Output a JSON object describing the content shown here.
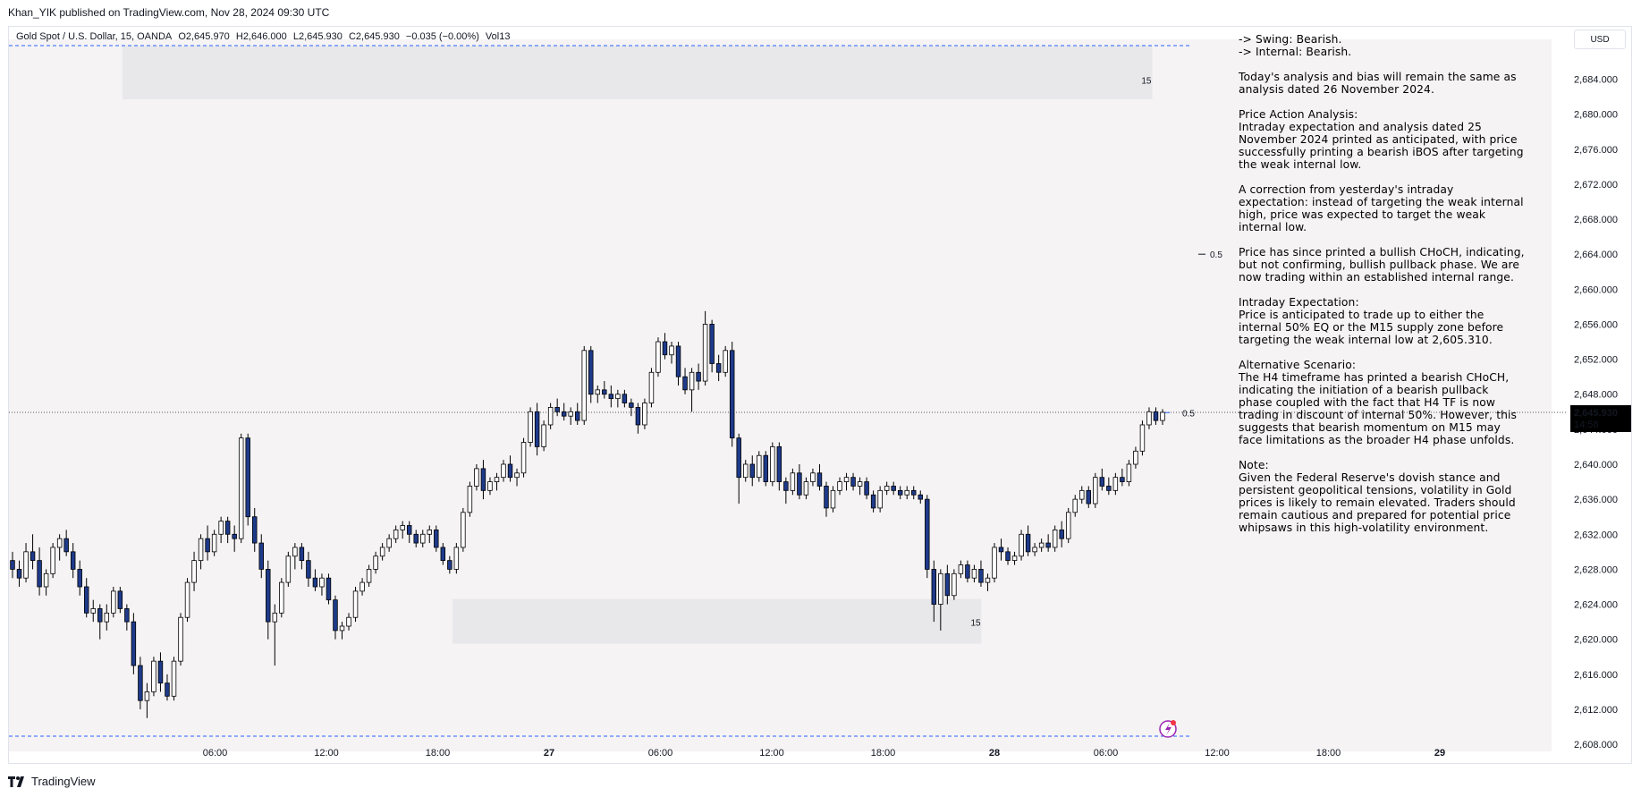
{
  "header": {
    "publisher": "Khan_YIK published on TradingView.com, Nov 28, 2024 09:30 UTC"
  },
  "legend": {
    "symbol": "Gold Spot / U.S. Dollar, 15, OANDA",
    "open": "O2,645.970",
    "high": "H2,646.000",
    "low": "L2,645.930",
    "close": "C2,645.930",
    "change": "−0.035 (−0.00%)",
    "volume": "Vol13"
  },
  "price_scale": {
    "currency": "USD",
    "last_price": "2,645.930",
    "countdown": "14:58"
  },
  "notes": [
    "-> Swing:  Bearish.\n-> Internal:  Bearish.",
    "Today's analysis and bias will remain the same as analysis dated 26 November 2024.",
    "Price Action Analysis:\nIntraday expectation and analysis dated 25 November 2024 printed as anticipated, with price successfully printing a bearish iBOS after targeting the weak internal low.",
    "A correction from yesterday's intraday expectation: instead of targeting the weak internal high, price was expected to target the weak internal low.",
    "Price has since printed a bullish CHoCH, indicating, but not confirming, bullish pullback phase. We are now trading within an established internal range.",
    "Intraday Expectation:\nPrice is anticipated to trade up to either the internal 50% EQ or the M15 supply zone before targeting the weak internal low at 2,605.310.",
    "Alternative Scenario:\nThe H4 timeframe has printed a bearish CHoCH, indicating the initiation of a bearish pullback phase coupled with the fact that H4 TF is now trading in discount of internal 50%. However, this suggests that bearish momentum on M15 may face limitations as the broader H4 phase unfolds.",
    "Note:\nGiven the Federal Reserve's dovish stance and persistent geopolitical tensions, volatility in Gold prices is likely to remain elevated. Traders should remain cautious and prepared for potential price whipsaws in this high-volatility environment."
  ],
  "footer": {
    "brand": "TradingView"
  },
  "colors": {
    "bull": "#ffffff",
    "bear": "#1e3a8a",
    "wick": "#000000",
    "zone": "#e8e8ea",
    "guide": "#2962ff",
    "bg": "#f5f3f4"
  },
  "chart_data": {
    "type": "candlestick",
    "symbol": "Gold Spot / U.S. Dollar",
    "timeframe": "15",
    "ylim": [
      2606,
      2688
    ],
    "yticks": [
      "2,608.000",
      "2,612.000",
      "2,616.000",
      "2,620.000",
      "2,624.000",
      "2,628.000",
      "2,632.000",
      "2,636.000",
      "2,640.000",
      "2,644.000",
      "2,648.000",
      "2,652.000",
      "2,656.000",
      "2,660.000",
      "2,664.000",
      "2,668.000",
      "2,672.000",
      "2,676.000",
      "2,680.000",
      "2,684.000"
    ],
    "xticks": [
      {
        "label": "06:00",
        "h": 6
      },
      {
        "label": "12:00",
        "h": 12
      },
      {
        "label": "18:00",
        "h": 18
      },
      {
        "label": "27",
        "h": 24
      },
      {
        "label": "06:00",
        "h": 30
      },
      {
        "label": "12:00",
        "h": 36
      },
      {
        "label": "18:00",
        "h": 42
      },
      {
        "label": "28",
        "h": 48
      },
      {
        "label": "06:00",
        "h": 54
      },
      {
        "label": "12:00",
        "h": 60
      },
      {
        "label": "18:00",
        "h": 66
      },
      {
        "label": "29",
        "h": 72
      }
    ],
    "x_unit": "hours since 00:00 Nov 26 (approx)",
    "last_price": 2645.93,
    "zones": [
      {
        "label": "15",
        "price_top": 2687.8,
        "price_bottom": 2681.7,
        "h_start": 1,
        "h_end": 56.5
      },
      {
        "label": "15",
        "price_top": 2624.6,
        "price_bottom": 2619.5,
        "h_start": 18.8,
        "h_end": 47.3
      }
    ],
    "lines": [
      {
        "label": "0.5",
        "price": 2664,
        "dashed": false
      },
      {
        "label": "0.5",
        "price": 2645.8,
        "dashed": false
      }
    ],
    "dashed_levels": [
      2688,
      2605.3
    ],
    "candles": [
      [
        2629.0,
        2630.0,
        2627.0,
        2628.0
      ],
      [
        2628.0,
        2629.0,
        2626.0,
        2627.0
      ],
      [
        2627.0,
        2631.0,
        2626.5,
        2630.0
      ],
      [
        2630.0,
        2632.0,
        2628.0,
        2629.0
      ],
      [
        2629.0,
        2630.5,
        2625.0,
        2626.0
      ],
      [
        2626.0,
        2628.0,
        2625.0,
        2627.5
      ],
      [
        2627.5,
        2631.0,
        2627.0,
        2630.5
      ],
      [
        2630.5,
        2632.0,
        2629.0,
        2631.5
      ],
      [
        2631.5,
        2632.5,
        2629.5,
        2630.0
      ],
      [
        2630.0,
        2631.0,
        2627.0,
        2628.0
      ],
      [
        2628.0,
        2629.0,
        2625.0,
        2626.0
      ],
      [
        2626.0,
        2627.0,
        2622.5,
        2623.0
      ],
      [
        2623.0,
        2624.5,
        2622.0,
        2623.5
      ],
      [
        2623.5,
        2624.0,
        2620.0,
        2622.0
      ],
      [
        2622.0,
        2624.0,
        2621.0,
        2623.0
      ],
      [
        2623.0,
        2626.0,
        2622.5,
        2625.5
      ],
      [
        2625.5,
        2626.0,
        2623.0,
        2623.5
      ],
      [
        2623.5,
        2624.0,
        2621.0,
        2622.0
      ],
      [
        2622.0,
        2623.0,
        2616.0,
        2617.0
      ],
      [
        2617.0,
        2618.0,
        2612.0,
        2613.0
      ],
      [
        2613.0,
        2615.0,
        2611.0,
        2614.0
      ],
      [
        2614.0,
        2618.0,
        2613.5,
        2617.5
      ],
      [
        2617.5,
        2618.5,
        2614.0,
        2615.0
      ],
      [
        2615.0,
        2616.0,
        2613.0,
        2613.5
      ],
      [
        2613.5,
        2618.0,
        2613.0,
        2617.5
      ],
      [
        2617.5,
        2623.0,
        2617.0,
        2622.5
      ],
      [
        2622.5,
        2627.0,
        2622.0,
        2626.5
      ],
      [
        2626.5,
        2630.0,
        2625.5,
        2629.0
      ],
      [
        2629.0,
        2632.0,
        2628.0,
        2631.5
      ],
      [
        2631.5,
        2633.0,
        2629.0,
        2630.0
      ],
      [
        2630.0,
        2632.5,
        2629.5,
        2632.0
      ],
      [
        2632.0,
        2634.0,
        2631.0,
        2633.5
      ],
      [
        2633.5,
        2634.0,
        2631.0,
        2632.0
      ],
      [
        2632.0,
        2633.0,
        2630.0,
        2631.5
      ],
      [
        2631.5,
        2643.5,
        2631.0,
        2643.0
      ],
      [
        2643.0,
        2643.5,
        2633.0,
        2634.0
      ],
      [
        2634.0,
        2635.0,
        2630.0,
        2631.0
      ],
      [
        2631.0,
        2632.0,
        2627.0,
        2628.0
      ],
      [
        2628.0,
        2629.0,
        2620.0,
        2622.0
      ],
      [
        2622.0,
        2624.0,
        2617.0,
        2623.0
      ],
      [
        2623.0,
        2627.0,
        2622.5,
        2626.5
      ],
      [
        2626.5,
        2630.0,
        2626.0,
        2629.5
      ],
      [
        2629.5,
        2631.0,
        2628.0,
        2630.5
      ],
      [
        2630.5,
        2631.0,
        2628.0,
        2629.0
      ],
      [
        2629.0,
        2630.0,
        2626.0,
        2627.0
      ],
      [
        2627.0,
        2628.0,
        2625.5,
        2626.0
      ],
      [
        2626.0,
        2627.5,
        2625.0,
        2627.0
      ],
      [
        2627.0,
        2627.5,
        2624.0,
        2624.5
      ],
      [
        2624.5,
        2625.0,
        2620.0,
        2621.0
      ],
      [
        2621.0,
        2622.0,
        2620.0,
        2621.5
      ],
      [
        2621.5,
        2623.0,
        2621.0,
        2622.5
      ],
      [
        2622.5,
        2626.0,
        2622.0,
        2625.5
      ],
      [
        2625.5,
        2627.0,
        2625.0,
        2626.5
      ],
      [
        2626.5,
        2628.5,
        2626.0,
        2628.0
      ],
      [
        2628.0,
        2630.0,
        2627.5,
        2629.5
      ],
      [
        2629.5,
        2631.0,
        2629.0,
        2630.5
      ],
      [
        2630.5,
        2632.0,
        2630.0,
        2631.5
      ],
      [
        2631.5,
        2633.0,
        2631.0,
        2632.5
      ],
      [
        2632.5,
        2633.5,
        2631.5,
        2633.0
      ],
      [
        2633.0,
        2633.5,
        2631.0,
        2632.0
      ],
      [
        2632.0,
        2632.5,
        2630.5,
        2631.0
      ],
      [
        2631.0,
        2632.5,
        2630.5,
        2632.0
      ],
      [
        2632.0,
        2633.0,
        2631.0,
        2632.5
      ],
      [
        2632.5,
        2633.0,
        2630.0,
        2630.5
      ],
      [
        2630.5,
        2631.0,
        2628.5,
        2629.0
      ],
      [
        2629.0,
        2629.5,
        2627.5,
        2628.0
      ],
      [
        2628.0,
        2631.0,
        2627.5,
        2630.5
      ],
      [
        2630.5,
        2635.0,
        2630.0,
        2634.5
      ],
      [
        2634.5,
        2638.0,
        2634.0,
        2637.5
      ],
      [
        2637.5,
        2640.0,
        2637.0,
        2639.5
      ],
      [
        2639.5,
        2640.5,
        2636.0,
        2637.0
      ],
      [
        2637.0,
        2638.5,
        2636.5,
        2638.0
      ],
      [
        2638.0,
        2639.0,
        2637.0,
        2638.5
      ],
      [
        2638.5,
        2640.5,
        2638.0,
        2640.0
      ],
      [
        2640.0,
        2641.0,
        2638.0,
        2638.5
      ],
      [
        2638.5,
        2639.5,
        2637.5,
        2639.0
      ],
      [
        2639.0,
        2643.0,
        2638.5,
        2642.5
      ],
      [
        2642.5,
        2646.5,
        2642.0,
        2646.0
      ],
      [
        2646.0,
        2647.0,
        2641.0,
        2642.0
      ],
      [
        2642.0,
        2645.0,
        2641.5,
        2644.5
      ],
      [
        2644.5,
        2647.0,
        2644.0,
        2646.5
      ],
      [
        2646.5,
        2647.5,
        2645.5,
        2646.0
      ],
      [
        2646.0,
        2647.0,
        2645.0,
        2645.5
      ],
      [
        2645.5,
        2646.5,
        2644.5,
        2646.0
      ],
      [
        2646.0,
        2647.0,
        2644.5,
        2645.0
      ],
      [
        2645.0,
        2653.5,
        2644.5,
        2653.0
      ],
      [
        2653.0,
        2653.5,
        2647.0,
        2648.0
      ],
      [
        2648.0,
        2649.0,
        2647.0,
        2648.5
      ],
      [
        2648.5,
        2649.5,
        2647.5,
        2648.0
      ],
      [
        2648.0,
        2649.0,
        2646.5,
        2647.5
      ],
      [
        2647.5,
        2648.5,
        2646.5,
        2648.0
      ],
      [
        2648.0,
        2648.5,
        2646.5,
        2647.0
      ],
      [
        2647.0,
        2647.5,
        2645.5,
        2646.5
      ],
      [
        2646.5,
        2647.0,
        2643.5,
        2644.5
      ],
      [
        2644.5,
        2647.5,
        2644.0,
        2647.0
      ],
      [
        2647.0,
        2651.0,
        2646.5,
        2650.5
      ],
      [
        2650.5,
        2654.5,
        2650.0,
        2654.0
      ],
      [
        2654.0,
        2655.0,
        2652.0,
        2652.5
      ],
      [
        2652.5,
        2654.0,
        2651.5,
        2653.5
      ],
      [
        2653.5,
        2654.0,
        2649.0,
        2650.0
      ],
      [
        2650.0,
        2651.0,
        2648.0,
        2648.5
      ],
      [
        2648.5,
        2651.0,
        2646.0,
        2650.5
      ],
      [
        2650.5,
        2651.5,
        2648.5,
        2649.5
      ],
      [
        2649.5,
        2657.5,
        2649.0,
        2656.0
      ],
      [
        2656.0,
        2656.5,
        2650.5,
        2651.5
      ],
      [
        2651.5,
        2652.5,
        2649.5,
        2650.5
      ],
      [
        2650.5,
        2653.5,
        2650.0,
        2653.0
      ],
      [
        2653.0,
        2654.0,
        2642.0,
        2643.0
      ],
      [
        2643.0,
        2643.5,
        2635.5,
        2638.5
      ],
      [
        2638.5,
        2640.5,
        2638.0,
        2640.0
      ],
      [
        2640.0,
        2641.0,
        2637.5,
        2638.5
      ],
      [
        2638.5,
        2641.5,
        2638.0,
        2641.0
      ],
      [
        2641.0,
        2641.5,
        2637.5,
        2638.0
      ],
      [
        2638.0,
        2642.5,
        2637.5,
        2642.0
      ],
      [
        2642.0,
        2642.5,
        2637.0,
        2638.0
      ],
      [
        2638.0,
        2638.5,
        2635.5,
        2637.0
      ],
      [
        2637.0,
        2639.5,
        2636.5,
        2639.0
      ],
      [
        2639.0,
        2640.0,
        2636.0,
        2636.5
      ],
      [
        2636.5,
        2638.5,
        2636.0,
        2638.0
      ],
      [
        2638.0,
        2639.5,
        2637.5,
        2639.0
      ],
      [
        2639.0,
        2640.0,
        2637.0,
        2637.5
      ],
      [
        2637.5,
        2638.0,
        2634.0,
        2635.0
      ],
      [
        2635.0,
        2637.5,
        2634.5,
        2637.0
      ],
      [
        2637.0,
        2638.5,
        2636.5,
        2638.0
      ],
      [
        2638.0,
        2639.0,
        2637.0,
        2638.5
      ],
      [
        2638.5,
        2639.0,
        2637.0,
        2637.5
      ],
      [
        2637.5,
        2638.5,
        2636.5,
        2638.0
      ],
      [
        2638.0,
        2638.5,
        2636.0,
        2636.5
      ],
      [
        2636.5,
        2637.0,
        2634.5,
        2635.0
      ],
      [
        2635.0,
        2637.5,
        2634.5,
        2637.0
      ],
      [
        2637.0,
        2638.0,
        2636.5,
        2637.5
      ],
      [
        2637.5,
        2638.0,
        2636.5,
        2637.0
      ],
      [
        2637.0,
        2637.5,
        2636.0,
        2636.5
      ],
      [
        2636.5,
        2637.5,
        2636.0,
        2637.0
      ],
      [
        2637.0,
        2637.5,
        2636.0,
        2636.5
      ],
      [
        2636.5,
        2637.0,
        2635.5,
        2636.0
      ],
      [
        2636.0,
        2636.5,
        2627.0,
        2628.0
      ],
      [
        2628.0,
        2629.0,
        2622.0,
        2624.0
      ],
      [
        2624.0,
        2628.0,
        2621.0,
        2627.5
      ],
      [
        2627.5,
        2628.5,
        2624.0,
        2625.0
      ],
      [
        2625.0,
        2628.0,
        2624.5,
        2627.5
      ],
      [
        2627.5,
        2629.0,
        2627.0,
        2628.5
      ],
      [
        2628.5,
        2629.0,
        2626.5,
        2627.0
      ],
      [
        2627.0,
        2628.5,
        2626.5,
        2628.0
      ],
      [
        2628.0,
        2629.0,
        2626.0,
        2626.5
      ],
      [
        2626.5,
        2627.5,
        2625.5,
        2627.0
      ],
      [
        2627.0,
        2631.0,
        2626.5,
        2630.5
      ],
      [
        2630.5,
        2631.5,
        2629.0,
        2630.0
      ],
      [
        2630.0,
        2630.5,
        2628.5,
        2629.0
      ],
      [
        2629.0,
        2630.0,
        2628.5,
        2629.5
      ],
      [
        2629.5,
        2632.5,
        2629.0,
        2632.0
      ],
      [
        2632.0,
        2633.0,
        2629.5,
        2630.0
      ],
      [
        2630.0,
        2631.0,
        2629.5,
        2630.5
      ],
      [
        2630.5,
        2631.5,
        2630.0,
        2631.0
      ],
      [
        2631.0,
        2632.0,
        2630.0,
        2630.5
      ],
      [
        2630.5,
        2633.0,
        2630.0,
        2632.5
      ],
      [
        2632.5,
        2633.5,
        2630.5,
        2631.5
      ],
      [
        2631.5,
        2635.0,
        2631.0,
        2634.5
      ],
      [
        2634.5,
        2636.5,
        2634.0,
        2636.0
      ],
      [
        2636.0,
        2637.5,
        2635.5,
        2637.0
      ],
      [
        2637.0,
        2637.5,
        2635.0,
        2635.5
      ],
      [
        2635.5,
        2639.0,
        2635.0,
        2638.5
      ],
      [
        2638.5,
        2639.5,
        2637.0,
        2637.5
      ],
      [
        2637.5,
        2638.5,
        2636.5,
        2637.0
      ],
      [
        2637.0,
        2639.0,
        2636.5,
        2638.5
      ],
      [
        2638.5,
        2639.5,
        2637.5,
        2638.0
      ],
      [
        2638.0,
        2640.5,
        2637.5,
        2640.0
      ],
      [
        2640.0,
        2642.0,
        2639.5,
        2641.5
      ],
      [
        2641.5,
        2645.0,
        2641.0,
        2644.5
      ],
      [
        2644.5,
        2646.5,
        2644.0,
        2646.0
      ],
      [
        2646.0,
        2646.5,
        2644.5,
        2645.0
      ],
      [
        2645.0,
        2646.3,
        2644.5,
        2645.93
      ]
    ]
  }
}
